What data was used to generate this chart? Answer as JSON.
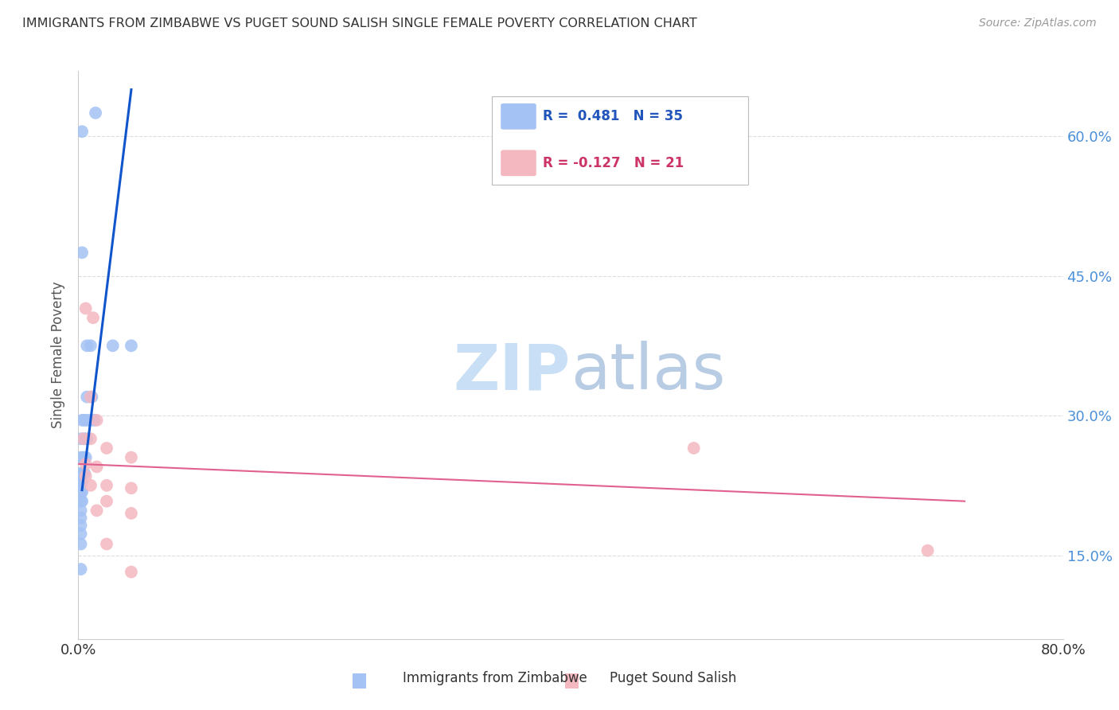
{
  "title": "IMMIGRANTS FROM ZIMBABWE VS PUGET SOUND SALISH SINGLE FEMALE POVERTY CORRELATION CHART",
  "source": "Source: ZipAtlas.com",
  "ylabel": "Single Female Poverty",
  "ytick_labels": [
    "15.0%",
    "30.0%",
    "45.0%",
    "60.0%"
  ],
  "ytick_values": [
    0.15,
    0.3,
    0.45,
    0.6
  ],
  "xlim": [
    0.0,
    0.8
  ],
  "ylim": [
    0.06,
    0.67
  ],
  "legend_blue_r": "R =  0.481",
  "legend_blue_n": "N = 35",
  "legend_pink_r": "R = -0.127",
  "legend_pink_n": "N = 21",
  "legend_blue_label": "Immigrants from Zimbabwe",
  "legend_pink_label": "Puget Sound Salish",
  "blue_color": "#a4c2f4",
  "pink_color": "#f4b8c1",
  "blue_line_color": "#1155cc",
  "pink_line_color": "#e06090",
  "blue_dots": [
    [
      0.003,
      0.605
    ],
    [
      0.014,
      0.625
    ],
    [
      0.003,
      0.475
    ],
    [
      0.007,
      0.375
    ],
    [
      0.01,
      0.375
    ],
    [
      0.028,
      0.375
    ],
    [
      0.043,
      0.375
    ],
    [
      0.007,
      0.32
    ],
    [
      0.011,
      0.32
    ],
    [
      0.003,
      0.295
    ],
    [
      0.005,
      0.295
    ],
    [
      0.007,
      0.295
    ],
    [
      0.01,
      0.295
    ],
    [
      0.013,
      0.295
    ],
    [
      0.002,
      0.275
    ],
    [
      0.005,
      0.275
    ],
    [
      0.007,
      0.275
    ],
    [
      0.002,
      0.255
    ],
    [
      0.004,
      0.255
    ],
    [
      0.006,
      0.255
    ],
    [
      0.002,
      0.238
    ],
    [
      0.003,
      0.238
    ],
    [
      0.005,
      0.238
    ],
    [
      0.002,
      0.228
    ],
    [
      0.003,
      0.228
    ],
    [
      0.002,
      0.218
    ],
    [
      0.003,
      0.218
    ],
    [
      0.002,
      0.208
    ],
    [
      0.003,
      0.208
    ],
    [
      0.002,
      0.198
    ],
    [
      0.002,
      0.19
    ],
    [
      0.002,
      0.182
    ],
    [
      0.002,
      0.173
    ],
    [
      0.002,
      0.162
    ],
    [
      0.002,
      0.135
    ]
  ],
  "pink_dots": [
    [
      0.006,
      0.415
    ],
    [
      0.012,
      0.405
    ],
    [
      0.01,
      0.32
    ],
    [
      0.015,
      0.295
    ],
    [
      0.004,
      0.275
    ],
    [
      0.01,
      0.275
    ],
    [
      0.023,
      0.265
    ],
    [
      0.043,
      0.255
    ],
    [
      0.006,
      0.248
    ],
    [
      0.015,
      0.245
    ],
    [
      0.006,
      0.235
    ],
    [
      0.01,
      0.225
    ],
    [
      0.023,
      0.225
    ],
    [
      0.043,
      0.222
    ],
    [
      0.023,
      0.208
    ],
    [
      0.015,
      0.198
    ],
    [
      0.043,
      0.195
    ],
    [
      0.5,
      0.265
    ],
    [
      0.023,
      0.162
    ],
    [
      0.043,
      0.132
    ],
    [
      0.69,
      0.155
    ]
  ],
  "blue_line_x": [
    0.003,
    0.043
  ],
  "blue_line_y": [
    0.22,
    0.65
  ],
  "pink_line_x": [
    0.0,
    0.72
  ],
  "pink_line_y": [
    0.248,
    0.208
  ],
  "watermark_zip": "ZIP",
  "watermark_atlas": "atlas",
  "watermark_color_zip": "#c8dff5",
  "watermark_color_atlas": "#b8cce4",
  "background_color": "#ffffff",
  "grid_color": "#dddddd",
  "title_color": "#333333",
  "source_color": "#999999",
  "right_tick_color": "#4a90d9",
  "bottom_tick_color": "#333333"
}
